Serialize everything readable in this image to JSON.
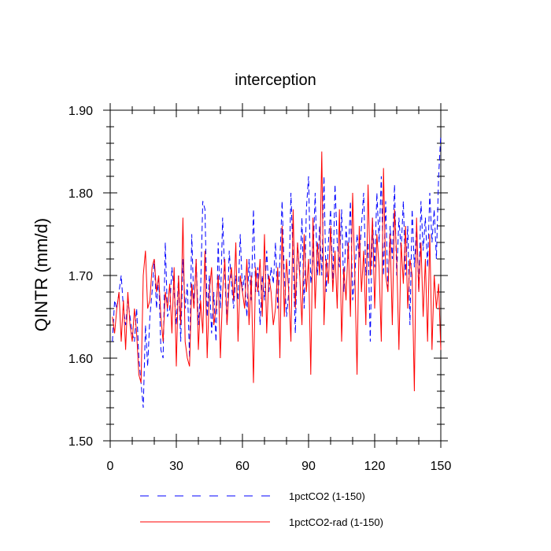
{
  "chart_data": {
    "type": "line",
    "title": "interception",
    "xlabel": "",
    "ylabel": "QINTR  (mm/d)",
    "xlim": [
      0,
      150
    ],
    "ylim": [
      1.5,
      1.9
    ],
    "xticks": [
      0,
      30,
      60,
      90,
      120,
      150
    ],
    "xtick_labels": [
      "0",
      "30",
      "60",
      "90",
      "120",
      "150"
    ],
    "yticks": [
      1.5,
      1.6,
      1.7,
      1.8,
      1.9
    ],
    "ytick_labels": [
      "1.50",
      "1.60",
      "1.70",
      "1.80",
      "1.90"
    ],
    "grid": false,
    "legend_position": "bottom",
    "series": [
      {
        "name": "1pctCO2 (1-150)",
        "color": "#0000ff",
        "dash": "dashed",
        "x_start": 1,
        "values": [
          1.62,
          1.67,
          1.66,
          1.68,
          1.7,
          1.66,
          1.64,
          1.67,
          1.65,
          1.63,
          1.62,
          1.66,
          1.6,
          1.57,
          1.54,
          1.64,
          1.59,
          1.65,
          1.68,
          1.72,
          1.66,
          1.7,
          1.61,
          1.6,
          1.74,
          1.65,
          1.66,
          1.71,
          1.68,
          1.64,
          1.7,
          1.62,
          1.72,
          1.66,
          1.69,
          1.6,
          1.75,
          1.66,
          1.72,
          1.64,
          1.68,
          1.79,
          1.78,
          1.65,
          1.7,
          1.63,
          1.68,
          1.62,
          1.74,
          1.66,
          1.77,
          1.7,
          1.64,
          1.73,
          1.69,
          1.66,
          1.7,
          1.67,
          1.75,
          1.68,
          1.7,
          1.65,
          1.72,
          1.67,
          1.78,
          1.68,
          1.71,
          1.64,
          1.7,
          1.67,
          1.73,
          1.68,
          1.71,
          1.69,
          1.74,
          1.66,
          1.72,
          1.79,
          1.7,
          1.65,
          1.68,
          1.8,
          1.72,
          1.63,
          1.74,
          1.7,
          1.77,
          1.66,
          1.78,
          1.82,
          1.69,
          1.72,
          1.8,
          1.7,
          1.76,
          1.7,
          1.82,
          1.68,
          1.74,
          1.78,
          1.69,
          1.81,
          1.74,
          1.71,
          1.78,
          1.68,
          1.76,
          1.72,
          1.79,
          1.67,
          1.7,
          1.75,
          1.72,
          1.76,
          1.8,
          1.7,
          1.74,
          1.62,
          1.77,
          1.71,
          1.8,
          1.74,
          1.82,
          1.7,
          1.79,
          1.68,
          1.76,
          1.72,
          1.81,
          1.7,
          1.77,
          1.73,
          1.79,
          1.7,
          1.76,
          1.64,
          1.78,
          1.71,
          1.76,
          1.68,
          1.79,
          1.73,
          1.77,
          1.71,
          1.8,
          1.74,
          1.78,
          1.72,
          1.82,
          1.87
        ]
      },
      {
        "name": "1pctCO2-rad (1-150)",
        "color": "#ff0000",
        "dash": "solid",
        "x_start": 1,
        "values": [
          1.65,
          1.63,
          1.66,
          1.68,
          1.62,
          1.67,
          1.61,
          1.68,
          1.64,
          1.62,
          1.66,
          1.63,
          1.58,
          1.57,
          1.7,
          1.73,
          1.66,
          1.67,
          1.71,
          1.72,
          1.68,
          1.7,
          1.65,
          1.62,
          1.68,
          1.66,
          1.69,
          1.63,
          1.71,
          1.59,
          1.7,
          1.64,
          1.77,
          1.62,
          1.6,
          1.59,
          1.69,
          1.66,
          1.72,
          1.61,
          1.67,
          1.63,
          1.73,
          1.6,
          1.68,
          1.71,
          1.64,
          1.66,
          1.7,
          1.6,
          1.68,
          1.72,
          1.64,
          1.69,
          1.71,
          1.67,
          1.74,
          1.62,
          1.7,
          1.68,
          1.66,
          1.72,
          1.64,
          1.7,
          1.57,
          1.71,
          1.68,
          1.72,
          1.65,
          1.75,
          1.63,
          1.7,
          1.68,
          1.64,
          1.66,
          1.71,
          1.6,
          1.76,
          1.65,
          1.72,
          1.68,
          1.62,
          1.78,
          1.66,
          1.74,
          1.7,
          1.64,
          1.75,
          1.68,
          1.72,
          1.58,
          1.77,
          1.66,
          1.74,
          1.7,
          1.85,
          1.64,
          1.72,
          1.69,
          1.76,
          1.68,
          1.73,
          1.66,
          1.78,
          1.62,
          1.71,
          1.67,
          1.74,
          1.65,
          1.8,
          1.7,
          1.58,
          1.76,
          1.68,
          1.73,
          1.64,
          1.81,
          1.7,
          1.77,
          1.66,
          1.75,
          1.71,
          1.62,
          1.83,
          1.7,
          1.68,
          1.75,
          1.64,
          1.78,
          1.72,
          1.61,
          1.74,
          1.69,
          1.76,
          1.66,
          1.72,
          1.7,
          1.56,
          1.77,
          1.68,
          1.74,
          1.65,
          1.72,
          1.62,
          1.75,
          1.61,
          1.7,
          1.66,
          1.69,
          1.61
        ]
      }
    ]
  }
}
